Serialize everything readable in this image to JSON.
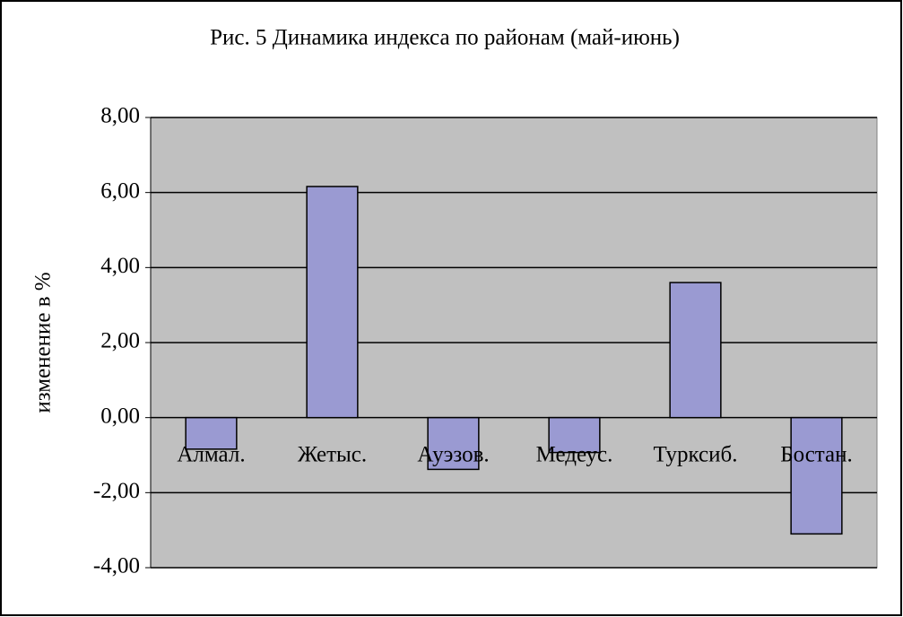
{
  "chart_data": {
    "type": "bar",
    "title": "Рис. 5 Динамика индекса по районам (май-июнь)",
    "y_label": "изменение в %",
    "categories": [
      "Алмал.",
      "Жетыс.",
      "Ауэзов.",
      "Медеус.",
      "Турксиб.",
      "Бостан."
    ],
    "values": [
      -0.84,
      6.16,
      -1.38,
      -0.93,
      3.6,
      -3.1
    ],
    "color": "#9a9ad2",
    "ylim": [
      -4,
      8
    ],
    "yticks": [
      {
        "value": -4,
        "label": "-4,00"
      },
      {
        "value": -2,
        "label": "-2,00"
      },
      {
        "value": 0,
        "label": "0,00"
      },
      {
        "value": 2,
        "label": "2,00"
      },
      {
        "value": 4,
        "label": "4,00"
      },
      {
        "value": 6,
        "label": "6,00"
      },
      {
        "value": 8,
        "label": "8,00"
      }
    ],
    "grid": true
  }
}
